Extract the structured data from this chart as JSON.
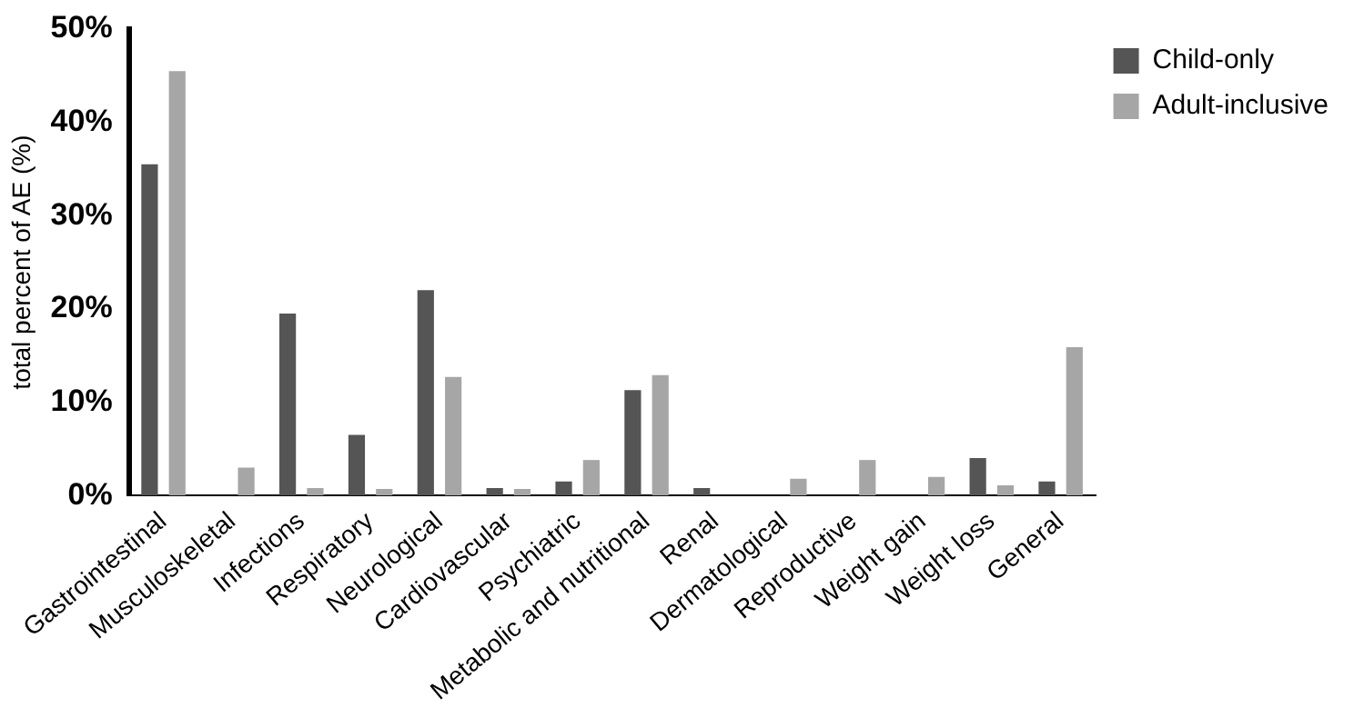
{
  "chart_data": {
    "type": "bar",
    "ylabel": "total percent of AE (%)",
    "categories": [
      "Gastrointestinal",
      "Musculoskeletal",
      "Infections",
      "Respiratory",
      "Neurological",
      "Cardiovascular",
      "Psychiatric",
      "Metabolic and nutritional",
      "Renal",
      "Dermatological",
      "Reproductive",
      "Weight gain",
      "Weight loss",
      "General"
    ],
    "series": [
      {
        "name": "Child-only",
        "color": "#555555",
        "values": [
          35.5,
          0,
          19.5,
          6.5,
          22,
          0.8,
          1.5,
          11.3,
          0.8,
          0,
          0,
          0,
          4,
          1.5
        ]
      },
      {
        "name": "Adult-inclusive",
        "color": "#a6a6a6",
        "values": [
          45.5,
          3,
          0.8,
          0.7,
          12.7,
          0.7,
          3.8,
          12.9,
          0,
          1.8,
          3.8,
          2,
          1.1,
          15.9
        ]
      }
    ],
    "ylim": [
      0,
      50
    ],
    "yticks": [
      {
        "value": 0,
        "label": "0%"
      },
      {
        "value": 10,
        "label": "10%"
      },
      {
        "value": 20,
        "label": "20%"
      },
      {
        "value": 30,
        "label": "30%"
      },
      {
        "value": 40,
        "label": "40%"
      },
      {
        "value": 50,
        "label": "50%"
      }
    ],
    "grid": false,
    "legend": "top right"
  }
}
